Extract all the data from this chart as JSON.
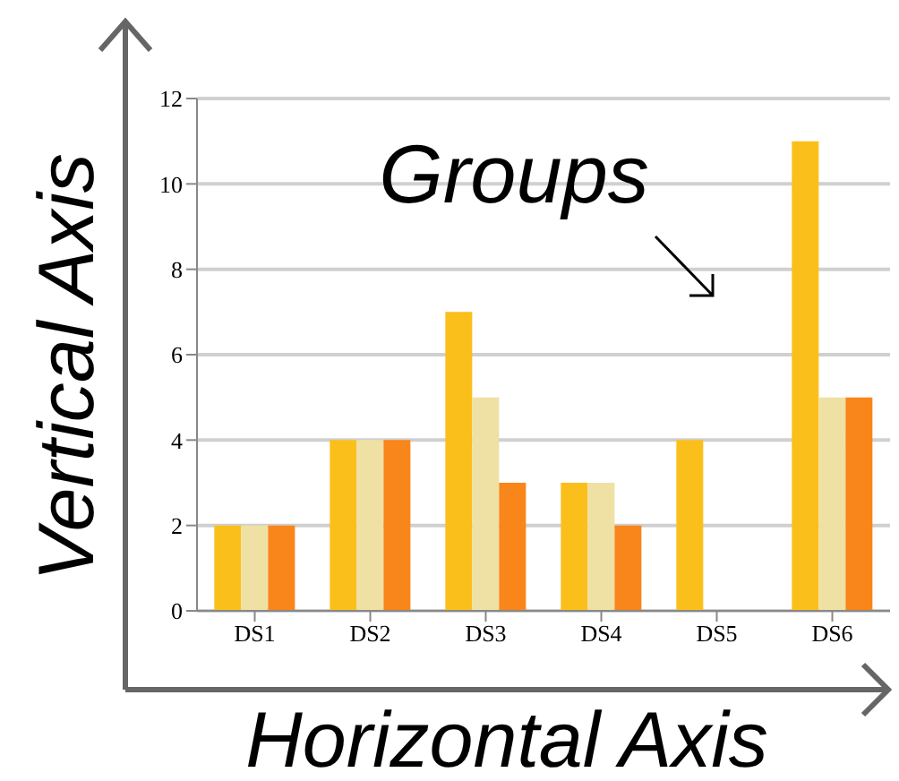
{
  "chart_data": {
    "type": "bar",
    "xlabel": "Horizontal Axis",
    "ylabel": "Vertical Axis",
    "annotations": [
      "Groups"
    ],
    "categories": [
      "DS1",
      "DS2",
      "DS3",
      "DS4",
      "DS5",
      "DS6"
    ],
    "series": [
      {
        "color": "#fbbf1c",
        "values": [
          2,
          4,
          7,
          3,
          4,
          11
        ]
      },
      {
        "color": "#efe0a4",
        "values": [
          2,
          4,
          5,
          3,
          0,
          5
        ]
      },
      {
        "color": "#f8861a",
        "values": [
          2,
          4,
          3,
          2,
          0,
          5
        ]
      }
    ],
    "ylim": [
      0,
      12
    ],
    "yticks": [
      0,
      2,
      4,
      6,
      8,
      10,
      12
    ],
    "grid": "y",
    "legend": false
  }
}
